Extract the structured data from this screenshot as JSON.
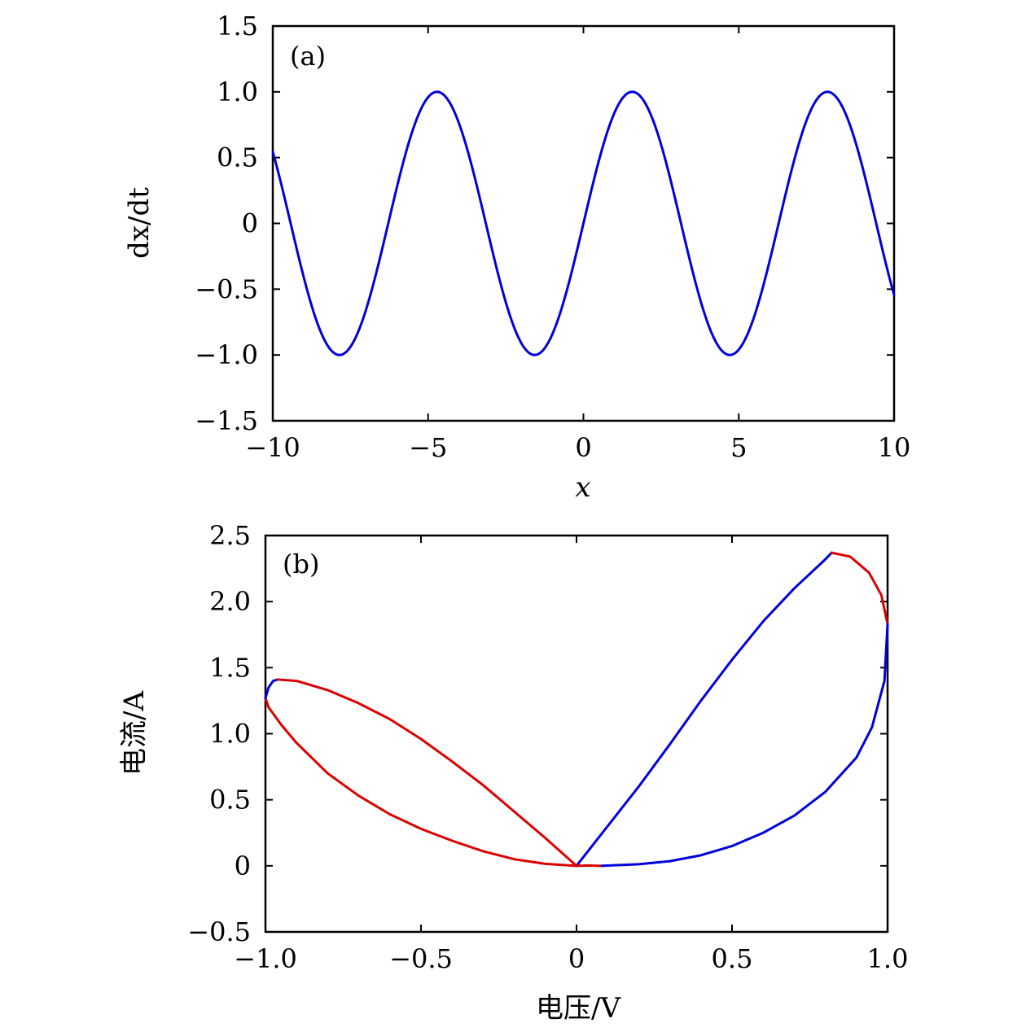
{
  "chart_data": [
    {
      "type": "line",
      "panel_label": "(a)",
      "xlabel": "x",
      "ylabel": "dx/dt",
      "xlim": [
        -10,
        10
      ],
      "ylim": [
        -1.5,
        1.5
      ],
      "xticks": [
        -10,
        -5,
        0,
        5,
        10
      ],
      "xtick_labels": [
        "−10",
        "−5",
        "0",
        "5",
        "10"
      ],
      "yticks": [
        -1.5,
        -1.0,
        -0.5,
        0,
        0.5,
        1.0,
        1.5
      ],
      "ytick_labels": [
        "−1.5",
        "−1.0",
        "−0.5",
        "0",
        "0.5",
        "1.0",
        "1.5"
      ],
      "grid": false,
      "series": [
        {
          "function": "sin(x)",
          "x_range": [
            -10,
            10
          ],
          "color": "#0000dd"
        }
      ]
    },
    {
      "type": "line",
      "panel_label": "(b)",
      "xlabel": "电压/V",
      "ylabel": "电流/A",
      "xlim": [
        -1.0,
        1.0
      ],
      "ylim": [
        -0.5,
        2.5
      ],
      "xticks": [
        -1.0,
        -0.5,
        0,
        0.5,
        1.0
      ],
      "xtick_labels": [
        "−1.0",
        "−0.5",
        "0",
        "0.5",
        "1.0"
      ],
      "yticks": [
        -0.5,
        0,
        0.5,
        1.0,
        1.5,
        2.0,
        2.5
      ],
      "ytick_labels": [
        "−0.5",
        "0",
        "0.5",
        "1.0",
        "1.5",
        "2.0",
        "2.5"
      ],
      "grid": false,
      "series": [
        {
          "color": "#0000dd",
          "x": [
            0,
            0.1,
            0.2,
            0.3,
            0.4,
            0.5,
            0.6,
            0.7,
            0.8,
            0.82
          ],
          "y": [
            0,
            0.3,
            0.6,
            0.92,
            1.25,
            1.56,
            1.85,
            2.1,
            2.32,
            2.37
          ]
        },
        {
          "color": "#dd0000",
          "x": [
            0.82,
            0.88,
            0.94,
            0.98,
            1.0
          ],
          "y": [
            2.37,
            2.34,
            2.22,
            2.05,
            1.83
          ]
        },
        {
          "color": "#0000dd",
          "x": [
            1.0,
            0.99,
            0.95,
            0.9,
            0.8,
            0.7,
            0.6,
            0.5,
            0.4,
            0.3,
            0.2,
            0.1,
            0.075
          ],
          "y": [
            1.83,
            1.4,
            1.05,
            0.82,
            0.56,
            0.38,
            0.25,
            0.15,
            0.08,
            0.035,
            0.012,
            0.002,
            0
          ]
        },
        {
          "color": "#dd0000",
          "x": [
            0.075,
            0.04,
            0,
            -0.1,
            -0.2,
            -0.3,
            -0.4,
            -0.5,
            -0.6,
            -0.7,
            -0.8,
            -0.9,
            -0.95,
            -0.99,
            -1.0
          ],
          "y": [
            0,
            0.003,
            0,
            0.015,
            0.05,
            0.11,
            0.19,
            0.28,
            0.39,
            0.53,
            0.7,
            0.93,
            1.07,
            1.2,
            1.27
          ]
        },
        {
          "color": "#0000dd",
          "x": [
            -1.0,
            -0.99,
            -0.975,
            -0.96
          ],
          "y": [
            1.27,
            1.35,
            1.4,
            1.41
          ]
        },
        {
          "color": "#dd0000",
          "x": [
            -0.96,
            -0.9,
            -0.8,
            -0.7,
            -0.6,
            -0.5,
            -0.4,
            -0.3,
            -0.2,
            -0.1,
            0
          ],
          "y": [
            1.41,
            1.4,
            1.33,
            1.23,
            1.11,
            0.96,
            0.79,
            0.61,
            0.41,
            0.21,
            0
          ]
        }
      ]
    }
  ]
}
